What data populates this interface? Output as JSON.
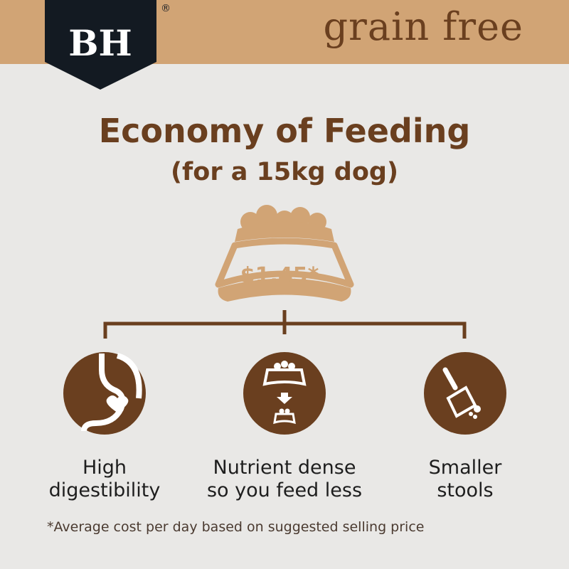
{
  "header": {
    "brand": "BH",
    "registered": "®",
    "tagline": "grain free"
  },
  "title": "Economy of Feeding",
  "subtitle": "(for a 15kg dog)",
  "price": "$1.45*",
  "benefits": [
    {
      "icon": "stomach-heart-icon",
      "line1": "High",
      "line2": "digestibility"
    },
    {
      "icon": "bowl-reduce-icon",
      "line1": "Nutrient dense",
      "line2": "so you feed less"
    },
    {
      "icon": "scooper-icon",
      "line1": "Smaller",
      "line2": "stools"
    }
  ],
  "footnote": "*Average cost per day based on suggested selling price",
  "colors": {
    "header": "#d1a475",
    "brown": "#6a3f1f",
    "navy": "#131a22",
    "background": "#e9e8e6"
  }
}
